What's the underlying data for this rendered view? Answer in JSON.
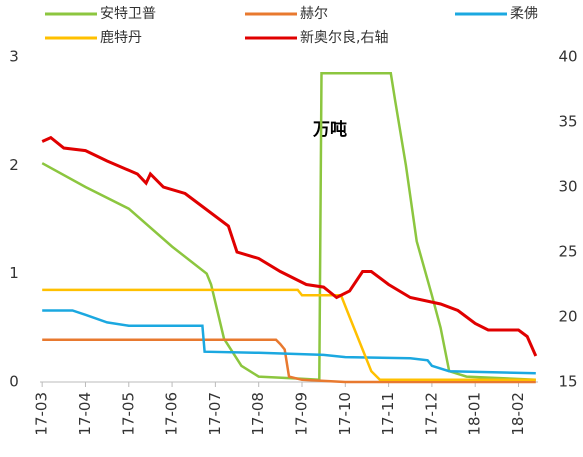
{
  "chart_data": {
    "type": "line",
    "annotations": [
      "万吨"
    ],
    "xlim": [
      -0.05,
      11.45
    ],
    "xticks": [
      {
        "value": 0,
        "label": "17-03"
      },
      {
        "value": 1,
        "label": "17-04"
      },
      {
        "value": 2,
        "label": "17-05"
      },
      {
        "value": 3,
        "label": "17-06"
      },
      {
        "value": 4,
        "label": "17-07"
      },
      {
        "value": 5,
        "label": "17-08"
      },
      {
        "value": 6,
        "label": "17-09"
      },
      {
        "value": 7,
        "label": "17-10"
      },
      {
        "value": 8,
        "label": "17-11"
      },
      {
        "value": 9,
        "label": "17-12"
      },
      {
        "value": 10,
        "label": "18-01"
      },
      {
        "value": 11,
        "label": "18-02"
      }
    ],
    "ylim": [
      0,
      3
    ],
    "yticks": [
      0,
      1,
      2,
      3
    ],
    "y2lim": [
      15,
      40
    ],
    "y2ticks": [
      15,
      20,
      25,
      30,
      35,
      40
    ],
    "series": [
      {
        "name": "安特卫普",
        "color": "#8cc63f",
        "x": [
          0,
          1,
          2,
          3,
          3.8,
          3.9,
          4.2,
          4.6,
          5,
          6,
          6.4,
          6.45,
          8.05,
          8.15,
          8.4,
          8.65,
          9.0,
          9.2,
          9.4,
          9.8,
          11.4
        ],
        "values": [
          2.02,
          1.8,
          1.6,
          1.25,
          1.0,
          0.9,
          0.4,
          0.15,
          0.05,
          0.03,
          0.02,
          2.85,
          2.85,
          2.6,
          2.0,
          1.3,
          0.8,
          0.5,
          0.1,
          0.05,
          0.02
        ]
      },
      {
        "name": "赫尔",
        "color": "#e8792f",
        "x": [
          0,
          5.4,
          5.5,
          5.6,
          5.7,
          6.0,
          7.0,
          11.4
        ],
        "values": [
          0.39,
          0.39,
          0.35,
          0.3,
          0.05,
          0.02,
          0,
          0
        ]
      },
      {
        "name": "柔佛",
        "color": "#1ba8e0",
        "x": [
          0,
          0.7,
          1,
          1.5,
          2,
          3.7,
          3.75,
          5,
          6.5,
          7.0,
          8.5,
          8.9,
          9.0,
          9.4,
          11.4
        ],
        "values": [
          0.66,
          0.66,
          0.62,
          0.55,
          0.52,
          0.52,
          0.28,
          0.27,
          0.25,
          0.23,
          0.22,
          0.2,
          0.15,
          0.1,
          0.08
        ]
      },
      {
        "name": "鹿特丹",
        "color": "#ffc000",
        "x": [
          0,
          5.9,
          6.0,
          6.9,
          7.1,
          7.4,
          7.6,
          7.8,
          11.4
        ],
        "values": [
          0.85,
          0.85,
          0.8,
          0.8,
          0.6,
          0.3,
          0.1,
          0.02,
          0.02
        ]
      },
      {
        "name": "新奥尔良,右轴",
        "color": "#e00000",
        "axis": "y2",
        "x": [
          0,
          0.2,
          0.5,
          1,
          1.5,
          2.2,
          2.4,
          2.5,
          2.8,
          3.3,
          3.7,
          4.3,
          4.5,
          5.0,
          5.5,
          6.1,
          6.5,
          6.8,
          7.1,
          7.4,
          7.6,
          8.0,
          8.5,
          9.2,
          9.6,
          10.0,
          10.3,
          11,
          11.2,
          11.4
        ],
        "values": [
          33.5,
          33.8,
          33,
          32.8,
          32,
          31,
          30.3,
          31,
          30,
          29.5,
          28.5,
          27,
          25,
          24.5,
          23.5,
          22.5,
          22.3,
          21.5,
          22,
          23.5,
          23.5,
          22.5,
          21.5,
          21,
          20.5,
          19.5,
          19,
          19,
          18.5,
          17
        ]
      }
    ]
  }
}
